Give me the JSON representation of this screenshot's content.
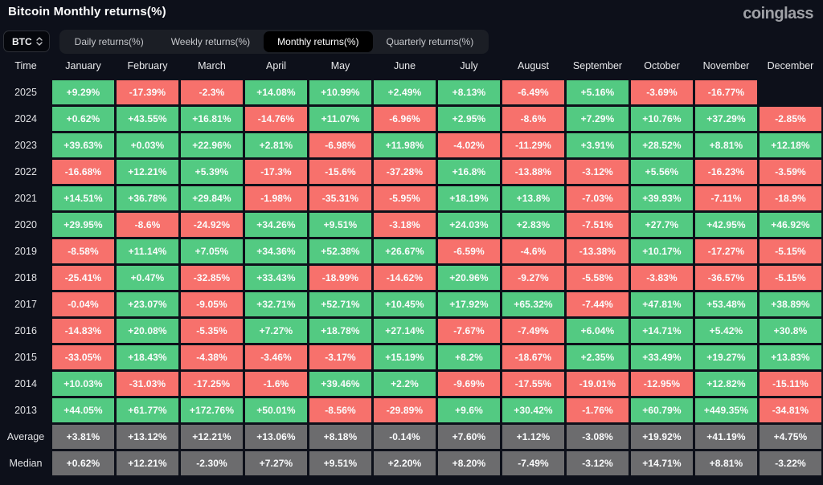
{
  "header": {
    "title": "Bitcoin Monthly returns(%)",
    "logo": "coinglass",
    "coin_selector": "BTC",
    "tabs": [
      {
        "label": "Daily returns(%)",
        "active": false
      },
      {
        "label": "Weekly returns(%)",
        "active": false
      },
      {
        "label": "Monthly returns(%)",
        "active": true
      },
      {
        "label": "Quarterly returns(%)",
        "active": false
      }
    ]
  },
  "colors": {
    "positive": "#53ca82",
    "negative": "#f7716c",
    "summary": "#6c6c6e",
    "background": "#0d101a"
  },
  "chart_data": {
    "type": "heatmap",
    "title": "Bitcoin Monthly returns(%)",
    "columns": [
      "Time",
      "January",
      "February",
      "March",
      "April",
      "May",
      "June",
      "July",
      "August",
      "September",
      "October",
      "November",
      "December"
    ],
    "rows": [
      {
        "label": "2025",
        "summary": false,
        "values": [
          "+9.29%",
          "-17.39%",
          "-2.3%",
          "+14.08%",
          "+10.99%",
          "+2.49%",
          "+8.13%",
          "-6.49%",
          "+5.16%",
          "-3.69%",
          "-16.77%",
          ""
        ]
      },
      {
        "label": "2024",
        "summary": false,
        "values": [
          "+0.62%",
          "+43.55%",
          "+16.81%",
          "-14.76%",
          "+11.07%",
          "-6.96%",
          "+2.95%",
          "-8.6%",
          "+7.29%",
          "+10.76%",
          "+37.29%",
          "-2.85%"
        ]
      },
      {
        "label": "2023",
        "summary": false,
        "values": [
          "+39.63%",
          "+0.03%",
          "+22.96%",
          "+2.81%",
          "-6.98%",
          "+11.98%",
          "-4.02%",
          "-11.29%",
          "+3.91%",
          "+28.52%",
          "+8.81%",
          "+12.18%"
        ]
      },
      {
        "label": "2022",
        "summary": false,
        "values": [
          "-16.68%",
          "+12.21%",
          "+5.39%",
          "-17.3%",
          "-15.6%",
          "-37.28%",
          "+16.8%",
          "-13.88%",
          "-3.12%",
          "+5.56%",
          "-16.23%",
          "-3.59%"
        ]
      },
      {
        "label": "2021",
        "summary": false,
        "values": [
          "+14.51%",
          "+36.78%",
          "+29.84%",
          "-1.98%",
          "-35.31%",
          "-5.95%",
          "+18.19%",
          "+13.8%",
          "-7.03%",
          "+39.93%",
          "-7.11%",
          "-18.9%"
        ]
      },
      {
        "label": "2020",
        "summary": false,
        "values": [
          "+29.95%",
          "-8.6%",
          "-24.92%",
          "+34.26%",
          "+9.51%",
          "-3.18%",
          "+24.03%",
          "+2.83%",
          "-7.51%",
          "+27.7%",
          "+42.95%",
          "+46.92%"
        ]
      },
      {
        "label": "2019",
        "summary": false,
        "values": [
          "-8.58%",
          "+11.14%",
          "+7.05%",
          "+34.36%",
          "+52.38%",
          "+26.67%",
          "-6.59%",
          "-4.6%",
          "-13.38%",
          "+10.17%",
          "-17.27%",
          "-5.15%"
        ]
      },
      {
        "label": "2018",
        "summary": false,
        "values": [
          "-25.41%",
          "+0.47%",
          "-32.85%",
          "+33.43%",
          "-18.99%",
          "-14.62%",
          "+20.96%",
          "-9.27%",
          "-5.58%",
          "-3.83%",
          "-36.57%",
          "-5.15%"
        ]
      },
      {
        "label": "2017",
        "summary": false,
        "values": [
          "-0.04%",
          "+23.07%",
          "-9.05%",
          "+32.71%",
          "+52.71%",
          "+10.45%",
          "+17.92%",
          "+65.32%",
          "-7.44%",
          "+47.81%",
          "+53.48%",
          "+38.89%"
        ]
      },
      {
        "label": "2016",
        "summary": false,
        "values": [
          "-14.83%",
          "+20.08%",
          "-5.35%",
          "+7.27%",
          "+18.78%",
          "+27.14%",
          "-7.67%",
          "-7.49%",
          "+6.04%",
          "+14.71%",
          "+5.42%",
          "+30.8%"
        ]
      },
      {
        "label": "2015",
        "summary": false,
        "values": [
          "-33.05%",
          "+18.43%",
          "-4.38%",
          "-3.46%",
          "-3.17%",
          "+15.19%",
          "+8.2%",
          "-18.67%",
          "+2.35%",
          "+33.49%",
          "+19.27%",
          "+13.83%"
        ]
      },
      {
        "label": "2014",
        "summary": false,
        "values": [
          "+10.03%",
          "-31.03%",
          "-17.25%",
          "-1.6%",
          "+39.46%",
          "+2.2%",
          "-9.69%",
          "-17.55%",
          "-19.01%",
          "-12.95%",
          "+12.82%",
          "-15.11%"
        ]
      },
      {
        "label": "2013",
        "summary": false,
        "values": [
          "+44.05%",
          "+61.77%",
          "+172.76%",
          "+50.01%",
          "-8.56%",
          "-29.89%",
          "+9.6%",
          "+30.42%",
          "-1.76%",
          "+60.79%",
          "+449.35%",
          "-34.81%"
        ]
      },
      {
        "label": "Average",
        "summary": true,
        "values": [
          "+3.81%",
          "+13.12%",
          "+12.21%",
          "+13.06%",
          "+8.18%",
          "-0.14%",
          "+7.60%",
          "+1.12%",
          "-3.08%",
          "+19.92%",
          "+41.19%",
          "+4.75%"
        ]
      },
      {
        "label": "Median",
        "summary": true,
        "values": [
          "+0.62%",
          "+12.21%",
          "-2.30%",
          "+7.27%",
          "+9.51%",
          "+2.20%",
          "+8.20%",
          "-7.49%",
          "-3.12%",
          "+14.71%",
          "+8.81%",
          "-3.22%"
        ]
      }
    ]
  }
}
